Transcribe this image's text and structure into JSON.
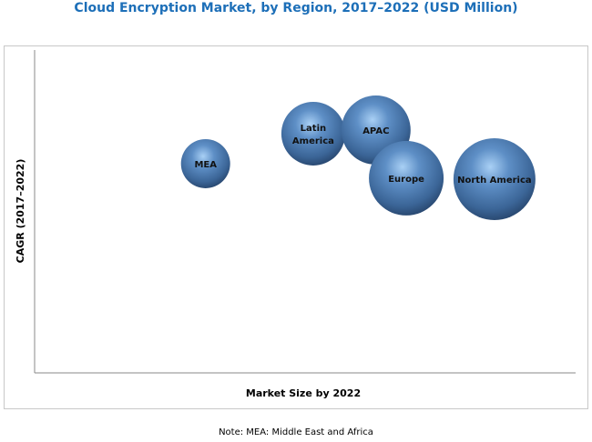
{
  "chart_data": {
    "type": "bubble",
    "title": "Cloud Encryption Market, by Region, 2017–2022 (USD Million)",
    "xlabel": "Market Size by 2022",
    "ylabel": "CAGR (2017–2022)",
    "note": "Note: MEA: Middle East and Africa",
    "axis_scale": "relative (no tick labels shown)",
    "xlim": [
      0,
      100
    ],
    "ylim": [
      0,
      100
    ],
    "grid": false,
    "bubble_color": "#4a78b0",
    "points": [
      {
        "label": "MEA",
        "x": 31.6,
        "y": 64.8,
        "size": 27
      },
      {
        "label": "Latin America",
        "x": 51.5,
        "y": 74.1,
        "size": 35
      },
      {
        "label": "APAC",
        "x": 63.1,
        "y": 75.2,
        "size": 38
      },
      {
        "label": "Europe",
        "x": 68.7,
        "y": 60.3,
        "size": 41
      },
      {
        "label": "North America",
        "x": 85.0,
        "y": 60.0,
        "size": 45
      }
    ]
  }
}
